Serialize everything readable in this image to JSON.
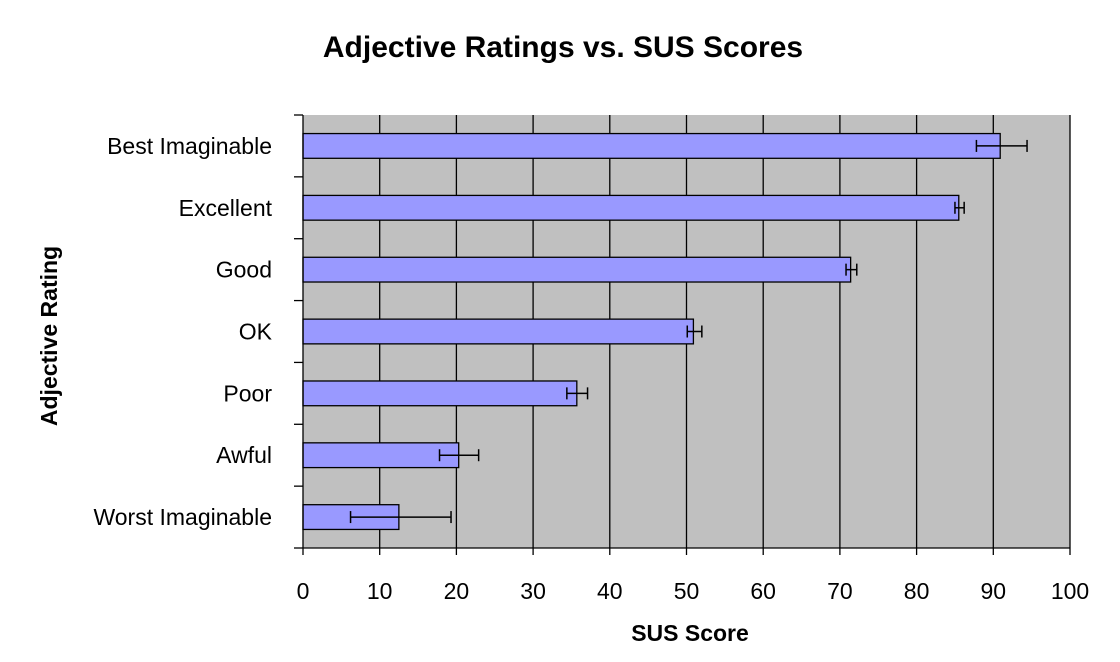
{
  "chart_data": {
    "type": "bar",
    "orientation": "horizontal",
    "title": "Adjective Ratings vs. SUS Scores",
    "xlabel": "SUS Score",
    "ylabel": "Adjective Rating",
    "xlim": [
      0,
      100
    ],
    "x_ticks": [
      "0",
      "10",
      "20",
      "30",
      "40",
      "50",
      "60",
      "70",
      "80",
      "90",
      "100"
    ],
    "grid": "vertical",
    "legend": "none",
    "categories": [
      "Best Imaginable",
      "Excellent",
      "Good",
      "OK",
      "Poor",
      "Awful",
      "Worst Imaginable"
    ],
    "values": [
      90.9,
      85.5,
      71.4,
      50.9,
      35.7,
      20.3,
      12.5
    ],
    "error_low": [
      87.8,
      85.0,
      70.8,
      50.1,
      34.4,
      17.8,
      6.2
    ],
    "error_high": [
      94.4,
      86.2,
      72.2,
      52.0,
      37.1,
      22.9,
      19.3
    ],
    "colors": {
      "bar_fill": "#9999ff",
      "plot_background": "#c0c0c0",
      "gridline": "#000000"
    }
  }
}
